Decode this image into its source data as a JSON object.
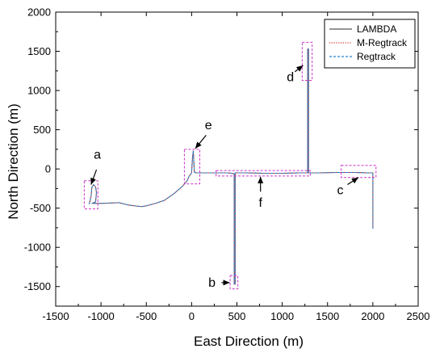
{
  "chart_data": {
    "type": "line",
    "title": "",
    "xlabel": "East Direction (m)",
    "ylabel": "North Direction (m)",
    "xlim": [
      -1500,
      2500
    ],
    "ylim": [
      -1750,
      2000
    ],
    "x_ticks": [
      -1500,
      -1000,
      -500,
      0,
      500,
      1000,
      1500,
      2000,
      2500
    ],
    "y_ticks": [
      -1500,
      -1000,
      -500,
      0,
      500,
      1000,
      1500,
      2000
    ],
    "grid": false,
    "legend_position": "top-right",
    "series": [
      {
        "name": "LAMBDA",
        "color": "#555555",
        "style": "solid",
        "x": [
          -1130,
          -1110,
          -1100,
          -1080,
          -1060,
          -1050,
          -1060,
          -1100,
          -1000,
          -800,
          -700,
          -600,
          -550,
          -500,
          -400,
          -300,
          -200,
          -100,
          -50,
          -30,
          -20,
          -10,
          -5,
          0,
          5,
          10,
          15,
          18,
          20,
          25,
          30,
          50,
          200,
          300,
          400,
          470,
          470,
          470,
          470,
          480,
          480,
          600,
          800,
          1000,
          1200,
          1270,
          1280,
          1280,
          1280,
          1290,
          1290,
          1400,
          1600,
          1800,
          1950,
          2000,
          2000
        ],
        "y": [
          -450,
          -350,
          -230,
          -200,
          -230,
          -300,
          -420,
          -440,
          -440,
          -430,
          -460,
          -475,
          -480,
          -470,
          -440,
          -400,
          -320,
          -220,
          -150,
          -100,
          -80,
          -70,
          -60,
          -40,
          50,
          150,
          200,
          230,
          200,
          80,
          -40,
          -50,
          -50,
          -50,
          -50,
          -60,
          -700,
          -1300,
          -1470,
          -1470,
          -50,
          -50,
          -55,
          -55,
          -50,
          -50,
          -50,
          500,
          1530,
          1530,
          -50,
          -50,
          -45,
          -45,
          -50,
          -50,
          -760
        ]
      },
      {
        "name": "M-Regtrack",
        "color": "#e03030",
        "style": "dotted",
        "x": [
          -1130,
          -1110,
          -1100,
          -1080,
          -1060,
          -1050,
          -1060,
          -1100,
          -1000,
          -800,
          -700,
          -600,
          -550,
          -500,
          -400,
          -300,
          -200,
          -100,
          -50,
          -30,
          -20,
          -10,
          -5,
          0,
          5,
          10,
          15,
          18,
          20,
          25,
          30,
          50,
          200,
          300,
          400,
          470,
          470,
          470,
          470,
          480,
          480,
          600,
          800,
          1000,
          1200,
          1270,
          1280,
          1280,
          1280,
          1290,
          1290,
          1400,
          1600,
          1800,
          1950,
          2000,
          2000
        ],
        "y": [
          -450,
          -350,
          -230,
          -200,
          -230,
          -300,
          -420,
          -440,
          -440,
          -430,
          -460,
          -475,
          -480,
          -470,
          -440,
          -400,
          -320,
          -220,
          -150,
          -100,
          -80,
          -70,
          -60,
          -40,
          50,
          150,
          200,
          230,
          200,
          80,
          -40,
          -50,
          -50,
          -50,
          -50,
          -60,
          -700,
          -1300,
          -1470,
          -1470,
          -50,
          -50,
          -55,
          -55,
          -50,
          -50,
          -50,
          500,
          1530,
          1530,
          -50,
          -50,
          -45,
          -45,
          -50,
          -50,
          -760
        ]
      },
      {
        "name": "Regtrack",
        "color": "#2a7fd4",
        "style": "dashed",
        "x": [
          -1130,
          -1110,
          -1100,
          -1080,
          -1060,
          -1050,
          -1060,
          -1100,
          -1000,
          -800,
          -700,
          -600,
          -550,
          -500,
          -400,
          -300,
          -200,
          -100,
          -50,
          -30,
          -20,
          -10,
          -5,
          0,
          5,
          10,
          15,
          18,
          20,
          25,
          30,
          50,
          200,
          300,
          400,
          470,
          470,
          470,
          470,
          480,
          480,
          600,
          800,
          1000,
          1200,
          1270,
          1280,
          1280,
          1280,
          1290,
          1290,
          1400,
          1600,
          1800,
          1950,
          2000,
          2000
        ],
        "y": [
          -450,
          -350,
          -230,
          -200,
          -230,
          -300,
          -420,
          -440,
          -440,
          -430,
          -460,
          -475,
          -480,
          -470,
          -440,
          -400,
          -320,
          -220,
          -150,
          -100,
          -80,
          -70,
          -60,
          -40,
          50,
          150,
          200,
          230,
          200,
          80,
          -40,
          -50,
          -50,
          -50,
          -50,
          -60,
          -700,
          -1300,
          -1470,
          -1470,
          -50,
          -50,
          -55,
          -55,
          -50,
          -50,
          -50,
          500,
          1530,
          1530,
          -50,
          -50,
          -45,
          -45,
          -50,
          -50,
          -760
        ]
      }
    ],
    "annotations": [
      {
        "label": "a",
        "box_x": [
          -1185,
          -1035
        ],
        "box_y": [
          -510,
          -150
        ],
        "arrow_from": [
          -1050,
          -10
        ],
        "arrow_to": [
          -1110,
          -200
        ],
        "text_at": [
          -1040,
          180
        ]
      },
      {
        "label": "b",
        "box_x": [
          425,
          510
        ],
        "box_y": [
          -1530,
          -1360
        ],
        "arrow_from": [
          330,
          -1450
        ],
        "arrow_to": [
          420,
          -1450
        ],
        "text_at": [
          225,
          -1450
        ]
      },
      {
        "label": "c",
        "box_x": [
          1650,
          2035
        ],
        "box_y": [
          -110,
          45
        ],
        "arrow_from": [
          1720,
          -200
        ],
        "arrow_to": [
          1840,
          -110
        ],
        "text_at": [
          1640,
          -270
        ]
      },
      {
        "label": "d",
        "box_x": [
          1220,
          1330
        ],
        "box_y": [
          1130,
          1615
        ],
        "arrow_from": [
          1140,
          1240
        ],
        "arrow_to": [
          1230,
          1320
        ],
        "text_at": [
          1090,
          1170
        ]
      },
      {
        "label": "e",
        "box_x": [
          -80,
          90
        ],
        "box_y": [
          -190,
          250
        ],
        "arrow_from": [
          160,
          430
        ],
        "arrow_to": [
          40,
          260
        ],
        "text_at": [
          185,
          560
        ]
      },
      {
        "label": "f",
        "box_x": [
          270,
          1310
        ],
        "box_y": [
          -90,
          -20
        ],
        "arrow_from": [
          760,
          -290
        ],
        "arrow_to": [
          760,
          -100
        ],
        "text_at": [
          760,
          -430
        ]
      }
    ],
    "annotation_box_color": "#cc33cc"
  }
}
